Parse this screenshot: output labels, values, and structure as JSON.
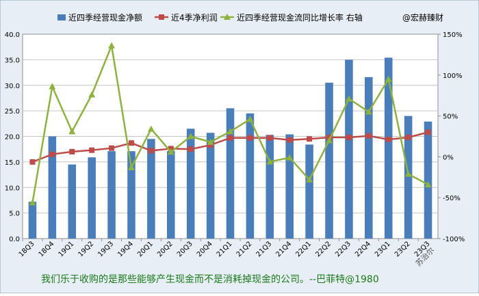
{
  "chart_data": {
    "type": "bar",
    "categories": [
      "18Q3",
      "18Q4",
      "19Q1",
      "19Q2",
      "19Q3",
      "19Q4",
      "20Q1",
      "20Q2",
      "20Q3",
      "20Q4",
      "21Q1",
      "21Q2",
      "21Q3",
      "21Q4",
      "22Q1",
      "22Q2",
      "22Q3",
      "22Q4",
      "23Q1",
      "23Q2",
      "23Q3"
    ],
    "series": [
      {
        "name": "近四季经营现金净额",
        "type": "bar",
        "axis": "left",
        "color": "#4a7ebb",
        "values": [
          7.2,
          20.0,
          14.5,
          15.9,
          17.1,
          17.1,
          19.5,
          17.1,
          21.5,
          20.7,
          25.5,
          24.5,
          20.3,
          20.4,
          18.4,
          30.5,
          35.0,
          31.6,
          35.4,
          24.0,
          22.9
        ]
      },
      {
        "name": "近4季净利润",
        "type": "line",
        "axis": "left",
        "color": "#be4b48",
        "values": [
          15.0,
          16.5,
          17.0,
          17.3,
          17.7,
          18.7,
          17.2,
          17.6,
          17.5,
          18.3,
          19.7,
          19.7,
          19.7,
          19.3,
          19.5,
          19.8,
          19.8,
          20.1,
          19.4,
          19.8,
          20.8
        ]
      },
      {
        "name": "近四季经营现金流同比增长率 右轴",
        "type": "line",
        "axis": "right",
        "color": "#8db23d",
        "values": [
          -56,
          86,
          31,
          76,
          136,
          -13,
          34,
          6,
          25,
          18,
          31,
          46,
          -6,
          -1,
          -28,
          20,
          71,
          55,
          95,
          -21,
          -34
        ]
      }
    ],
    "ylim": [
      0,
      40
    ],
    "yticks": [
      "0.0",
      "5.0",
      "10.0",
      "15.0",
      "20.0",
      "25.0",
      "30.0",
      "35.0",
      "40.0"
    ],
    "y2lim": [
      -100,
      150
    ],
    "y2ticks": [
      "-100%",
      "-50%",
      "0%",
      "50%",
      "100%",
      "150%"
    ],
    "legend_extra": "@宏赫臻财",
    "watermark": "苏治尔",
    "caption": "我们乐于收购的是那些能够产生现金而不是消耗掉现金的公司。--巴菲特@1980",
    "colors": {
      "background": "#e8eef5",
      "plot": "#ffffff",
      "caption": "#1a7a1a",
      "grid": "#bdbdbd"
    }
  }
}
